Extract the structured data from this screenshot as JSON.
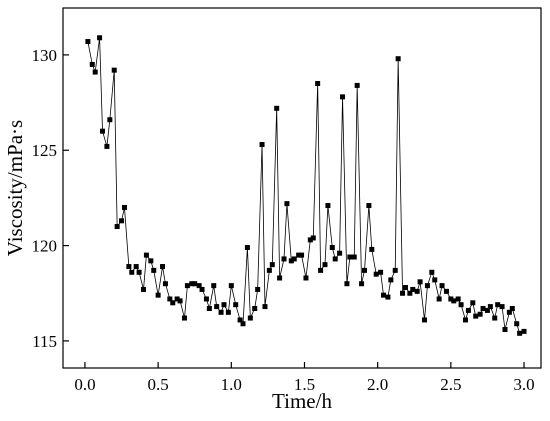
{
  "chart_data": {
    "type": "line",
    "x_label": "Time/h",
    "y_label": "Viscosity/mPa·s",
    "xlim": [
      -0.15,
      3.116
    ],
    "ylim": [
      113.58,
      132.46
    ],
    "xticks": [
      {
        "value": 0,
        "label": "0.0"
      },
      0.5,
      {
        "value": 1,
        "label": "1.0"
      },
      1.5,
      {
        "value": 2,
        "label": "2.0"
      },
      2.5,
      {
        "value": 3,
        "label": "3.0"
      }
    ],
    "yticks": [
      115,
      120,
      125,
      130
    ],
    "series": [
      {
        "color": "#000000",
        "x": [
          0.02,
          0.05,
          0.07,
          0.1,
          0.12,
          0.15,
          0.17,
          0.2,
          0.22,
          0.25,
          0.27,
          0.3,
          0.32,
          0.35,
          0.37,
          0.4,
          0.42,
          0.45,
          0.47,
          0.5,
          0.53,
          0.55,
          0.58,
          0.6,
          0.63,
          0.65,
          0.68,
          0.7,
          0.73,
          0.75,
          0.78,
          0.8,
          0.83,
          0.85,
          0.88,
          0.9,
          0.93,
          0.95,
          0.98,
          1.0,
          1.03,
          1.06,
          1.08,
          1.11,
          1.13,
          1.16,
          1.18,
          1.21,
          1.23,
          1.26,
          1.28,
          1.31,
          1.33,
          1.36,
          1.38,
          1.41,
          1.43,
          1.46,
          1.48,
          1.51,
          1.54,
          1.56,
          1.59,
          1.61,
          1.64,
          1.66,
          1.69,
          1.71,
          1.74,
          1.76,
          1.79,
          1.81,
          1.84,
          1.86,
          1.89,
          1.91,
          1.94,
          1.96,
          1.99,
          2.02,
          2.04,
          2.07,
          2.09,
          2.12,
          2.14,
          2.17,
          2.19,
          2.22,
          2.24,
          2.27,
          2.29,
          2.32,
          2.34,
          2.37,
          2.39,
          2.42,
          2.44,
          2.47,
          2.5,
          2.52,
          2.55,
          2.57,
          2.6,
          2.62,
          2.65,
          2.67,
          2.7,
          2.72,
          2.75,
          2.77,
          2.8,
          2.82,
          2.85,
          2.87,
          2.9,
          2.92,
          2.95,
          2.97,
          3.0
        ],
        "values": [
          130.7,
          129.5,
          129.1,
          130.9,
          126.0,
          125.2,
          126.6,
          129.2,
          121.0,
          121.3,
          122.0,
          118.9,
          118.6,
          118.9,
          118.6,
          117.7,
          119.5,
          119.2,
          118.7,
          117.4,
          118.9,
          118.0,
          117.2,
          117.0,
          117.2,
          117.1,
          116.2,
          117.9,
          118.0,
          118.0,
          117.9,
          117.7,
          117.2,
          116.7,
          117.9,
          116.8,
          116.5,
          116.9,
          116.5,
          117.9,
          116.9,
          116.1,
          115.9,
          119.9,
          116.2,
          116.7,
          117.7,
          125.3,
          116.8,
          118.7,
          119.0,
          127.2,
          118.3,
          119.3,
          122.2,
          119.2,
          119.3,
          119.5,
          119.5,
          118.3,
          120.3,
          120.4,
          128.5,
          118.7,
          119.0,
          122.1,
          119.9,
          119.3,
          119.6,
          127.8,
          118.0,
          119.4,
          119.4,
          128.4,
          118.0,
          118.7,
          122.1,
          119.8,
          118.5,
          118.6,
          117.4,
          117.3,
          118.2,
          118.7,
          129.8,
          117.5,
          117.8,
          117.5,
          117.7,
          117.6,
          118.1,
          116.1,
          117.9,
          118.6,
          118.2,
          117.2,
          117.9,
          117.6,
          117.2,
          117.1,
          117.2,
          116.9,
          116.1,
          116.6,
          117.0,
          116.3,
          116.4,
          116.7,
          116.6,
          116.8,
          116.2,
          116.9,
          116.8,
          115.6,
          116.5,
          116.7,
          115.9,
          115.4,
          115.5
        ]
      }
    ]
  }
}
